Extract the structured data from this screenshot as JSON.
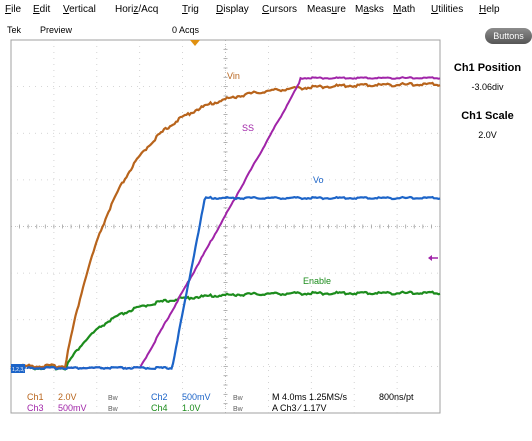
{
  "menu": [
    "File",
    "Edit",
    "Vertical",
    "Horiz/Acq",
    "Trig",
    "Display",
    "Cursors",
    "Measure",
    "Masks",
    "Math",
    "Utilities",
    "Help"
  ],
  "menu_mnemonics": [
    "F",
    "E",
    "V",
    "z",
    "T",
    "D",
    "C",
    "u",
    "a",
    "M",
    "U",
    "H"
  ],
  "status": {
    "brand": "Tek",
    "mode": "Preview",
    "acqs": "0 Acqs"
  },
  "buttons_label": "Buttons",
  "side_panel": {
    "position_title": "Ch1 Position",
    "position_value": "-3.06div",
    "scale_title": "Ch1 Scale",
    "scale_value": "2.0V"
  },
  "traces": {
    "vin": "Vin",
    "ss": "SS",
    "vo": "Vo",
    "enable": "Enable"
  },
  "ground_marker": "1,2,3,4",
  "channels": {
    "ch1": {
      "label": "Ch1",
      "scale": "2.0V",
      "bw": "Bw"
    },
    "ch2": {
      "label": "Ch2",
      "scale": "500mV",
      "bw": "Bw"
    },
    "ch3": {
      "label": "Ch3",
      "scale": "500mV",
      "bw": "Bw"
    },
    "ch4": {
      "label": "Ch4",
      "scale": "1.0V",
      "bw": "Bw"
    }
  },
  "timebase": "M 4.0ms 1.25MS/s",
  "resolution": "800ns/pt",
  "trigger": "A  Ch3  ⁄  1.17V",
  "colors": {
    "ch1": "#b8641c",
    "ch2": "#1c64c8",
    "ch3": "#a024a8",
    "ch4": "#1c8c1c",
    "grid": "#b0b0b0"
  }
}
